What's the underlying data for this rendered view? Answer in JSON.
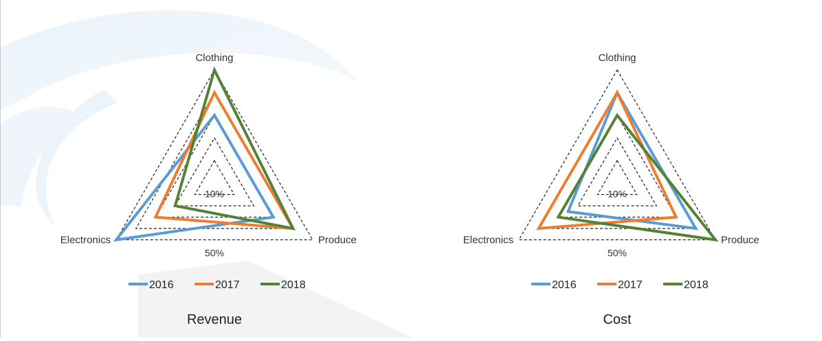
{
  "chart_data": [
    {
      "type": "radar",
      "title": "Revenue",
      "categories": [
        "Clothing",
        "Produce",
        "Electronics"
      ],
      "ring_labels": [
        "10%",
        "50%"
      ],
      "rlim": [
        0,
        0.5
      ],
      "grid": "dashed",
      "legend": "bottom",
      "series": [
        {
          "name": "2016",
          "color": "#5b9bd5",
          "values": [
            0.3,
            0.3,
            0.5
          ]
        },
        {
          "name": "2017",
          "color": "#ed7d31",
          "values": [
            0.4,
            0.4,
            0.3
          ]
        },
        {
          "name": "2018",
          "color": "#548235",
          "values": [
            0.5,
            0.4,
            0.2
          ]
        }
      ]
    },
    {
      "type": "radar",
      "title": "Cost",
      "categories": [
        "Clothing",
        "Produce",
        "Electronics"
      ],
      "ring_labels": [
        "10%",
        "50%"
      ],
      "rlim": [
        0,
        0.5
      ],
      "grid": "dashed",
      "legend": "bottom",
      "series": [
        {
          "name": "2016",
          "color": "#5b9bd5",
          "values": [
            0.4,
            0.4,
            0.25
          ]
        },
        {
          "name": "2017",
          "color": "#ed7d31",
          "values": [
            0.4,
            0.3,
            0.4
          ]
        },
        {
          "name": "2018",
          "color": "#548235",
          "values": [
            0.3,
            0.5,
            0.3
          ]
        }
      ]
    }
  ]
}
